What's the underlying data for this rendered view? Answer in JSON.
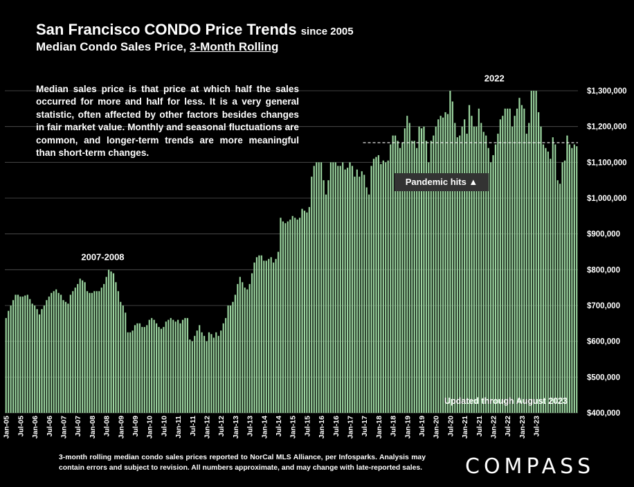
{
  "header": {
    "title": "San Francisco CONDO Price Trends",
    "title_suffix": "since 2005",
    "subtitle_prefix": "Median Condo Sales Price,",
    "subtitle_underlined": "3-Month Rolling"
  },
  "description": "Median sales price is that price at which half the sales occurred for more and half for less. It is a very general statistic, often affected by other factors besides changes in fair market value. Monthly and seasonal fluctuations are common, and longer-term trends are more meaningful than short-term changes.",
  "footnote": "3-month rolling median condo sales prices reported to NorCal MLS Alliance, per Infosparks. Analysis may contain errors and subject to revision. All numbers approximate, and may change with late-reported sales.",
  "logo": "COMPASS",
  "colors": {
    "background": "#000000",
    "bar": "#9fd7a3",
    "bar_edge": "#4a7a4d",
    "grid": "#555555"
  },
  "chart_data": {
    "type": "bar",
    "ylim": [
      400000,
      1300000
    ],
    "yticks": [
      400000,
      500000,
      600000,
      700000,
      800000,
      900000,
      1000000,
      1100000,
      1200000,
      1300000
    ],
    "ytick_labels": [
      "$400,000",
      "$500,000",
      "$600,000",
      "$700,000",
      "$800,000",
      "$900,000",
      "$1,000,000",
      "$1,100,000",
      "$1,200,000",
      "$1,300,000"
    ],
    "xtick_labels": [
      "Jan-05",
      "Jul-05",
      "Jan-06",
      "Jul-06",
      "Jan-07",
      "Jul-07",
      "Jan-08",
      "Jul-08",
      "Jan-09",
      "Jul-09",
      "Jan-10",
      "Jul-10",
      "Jan-11",
      "Jul-11",
      "Jan-12",
      "Jul-12",
      "Jan-13",
      "Jul-13",
      "Jan-14",
      "Jul-14",
      "Jan-15",
      "Jul-15",
      "Jan-16",
      "Jul-16",
      "Jan-17",
      "Jul-17",
      "Jan-18",
      "Jul-18",
      "Jan-19",
      "Jul-19",
      "Jan-20",
      "Jul-20",
      "Jan-21",
      "Jul-21",
      "Jan-22",
      "Jul-22",
      "Jan-23",
      "Jul-23"
    ],
    "start_month": "Jan-05",
    "values": [
      665000,
      685000,
      700000,
      715000,
      730000,
      730000,
      725000,
      725000,
      728000,
      730000,
      718000,
      705000,
      700000,
      690000,
      675000,
      690000,
      700000,
      715000,
      725000,
      735000,
      740000,
      745000,
      735000,
      730000,
      715000,
      710000,
      705000,
      730000,
      740000,
      750000,
      760000,
      775000,
      770000,
      765000,
      740000,
      735000,
      735000,
      740000,
      740000,
      740000,
      750000,
      760000,
      780000,
      800000,
      795000,
      790000,
      765000,
      740000,
      710000,
      700000,
      680000,
      625000,
      625000,
      630000,
      645000,
      650000,
      650000,
      640000,
      640000,
      645000,
      660000,
      665000,
      660000,
      650000,
      640000,
      635000,
      640000,
      655000,
      660000,
      665000,
      660000,
      655000,
      660000,
      650000,
      660000,
      665000,
      665000,
      605000,
      600000,
      615000,
      630000,
      645000,
      625000,
      615000,
      600000,
      625000,
      620000,
      610000,
      625000,
      615000,
      630000,
      650000,
      665000,
      700000,
      700000,
      710000,
      730000,
      760000,
      780000,
      765000,
      750000,
      745000,
      760000,
      790000,
      820000,
      835000,
      840000,
      840000,
      825000,
      825000,
      830000,
      835000,
      820000,
      830000,
      850000,
      945000,
      935000,
      930000,
      935000,
      940000,
      950000,
      945000,
      940000,
      945000,
      970000,
      965000,
      960000,
      975000,
      1060000,
      1090000,
      1100000,
      1100000,
      1100000,
      1050000,
      1010000,
      1050000,
      1100000,
      1100000,
      1100000,
      1090000,
      1090000,
      1100000,
      1080000,
      1085000,
      1100000,
      1090000,
      1060000,
      1080000,
      1060000,
      1075000,
      1065000,
      1030000,
      1010000,
      1090000,
      1110000,
      1115000,
      1120000,
      1095000,
      1105000,
      1100000,
      1105000,
      1150000,
      1175000,
      1175000,
      1160000,
      1140000,
      1155000,
      1195000,
      1230000,
      1210000,
      1160000,
      1160000,
      1140000,
      1200000,
      1195000,
      1200000,
      1160000,
      1100000,
      1160000,
      1175000,
      1200000,
      1220000,
      1230000,
      1225000,
      1240000,
      1235000,
      1300000,
      1270000,
      1210000,
      1170000,
      1175000,
      1200000,
      1220000,
      1180000,
      1260000,
      1230000,
      1200000,
      1200000,
      1250000,
      1210000,
      1185000,
      1175000,
      1140000,
      1100000,
      1120000,
      1150000,
      1180000,
      1220000,
      1230000,
      1250000,
      1250000,
      1250000,
      1200000,
      1230000,
      1250000,
      1280000,
      1260000,
      1250000,
      1180000,
      1210000,
      1300000,
      1300000,
      1300000,
      1240000,
      1200000,
      1150000,
      1140000,
      1130000,
      1110000,
      1170000,
      1150000,
      1050000,
      1040000,
      1100000,
      1105000,
      1175000,
      1150000,
      1140000,
      1150000,
      1145000
    ],
    "reference_line": {
      "value": 1155000,
      "style": "dashed",
      "color": "#ffffff"
    },
    "annotations": [
      {
        "text": "2007-2008",
        "at_value": 815000,
        "month_index": 41
      },
      {
        "text": "2022",
        "at_value": 1315000,
        "month_index": 205
      }
    ],
    "pandemic_label": "Pandemic hits ▲",
    "updated_label": "Updated through August 2023"
  }
}
